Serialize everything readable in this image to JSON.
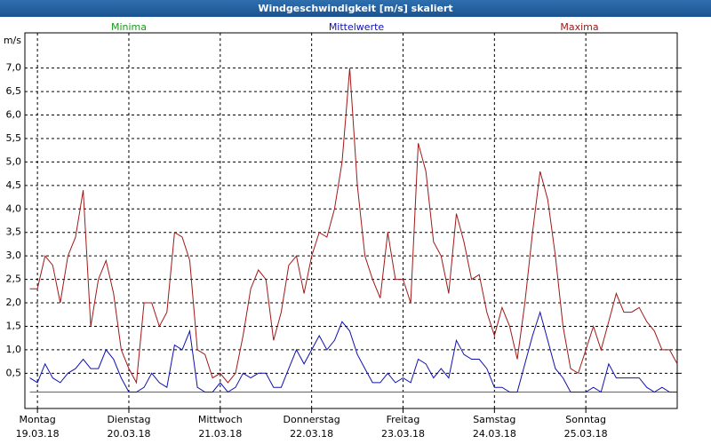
{
  "chart_data": {
    "type": "line",
    "title": "Windgeschwindigkeit [m/s] skaliert",
    "y_unit": "m/s",
    "x": [
      -2,
      0,
      2,
      4,
      6,
      8,
      10,
      12,
      14,
      16,
      18,
      20,
      22,
      24,
      26,
      28,
      30,
      32,
      34,
      36,
      38,
      40,
      42,
      44,
      46,
      48,
      50,
      52,
      54,
      56,
      58,
      60,
      62,
      64,
      66,
      68,
      70,
      72,
      74,
      76,
      78,
      80,
      82,
      84,
      86,
      88,
      90,
      92,
      94,
      96,
      98,
      100,
      102,
      104,
      106,
      108,
      110,
      112,
      114,
      116,
      118,
      120,
      122,
      124,
      126,
      128,
      130,
      132,
      134,
      136,
      138,
      140,
      142,
      144,
      146,
      148,
      150,
      152,
      154,
      156,
      158,
      160,
      162,
      164,
      166,
      168
    ],
    "xlim": [
      -3.3,
      168
    ],
    "xticks": [
      {
        "value": 0,
        "label": "19.03.18"
      },
      {
        "value": 24,
        "label": "20.03.18"
      },
      {
        "value": 48,
        "label": "21.03.18"
      },
      {
        "value": 72,
        "label": "22.03.18"
      },
      {
        "value": 96,
        "label": "23.03.18"
      },
      {
        "value": 120,
        "label": "24.03.18"
      },
      {
        "value": 144,
        "label": "25.03.18"
      }
    ],
    "xtick_weekdays": [
      "Montag",
      "Dienstag",
      "Mittwoch",
      "Donnerstag",
      "Freitag",
      "Samstag",
      "Sonntag"
    ],
    "ylim": [
      -0.25,
      7.75
    ],
    "yticks": [
      {
        "value": 0.5,
        "label": "0,5"
      },
      {
        "value": 1,
        "label": "1,0"
      },
      {
        "value": 1.5,
        "label": "1,5"
      },
      {
        "value": 2,
        "label": "2,0"
      },
      {
        "value": 2.5,
        "label": "2,5"
      },
      {
        "value": 3,
        "label": "3,0"
      },
      {
        "value": 3.5,
        "label": "3,5"
      },
      {
        "value": 4,
        "label": "4,0"
      },
      {
        "value": 4.5,
        "label": "4,5"
      },
      {
        "value": 5,
        "label": "5,0"
      },
      {
        "value": 5.5,
        "label": "5,5"
      },
      {
        "value": 6,
        "label": "6,0"
      },
      {
        "value": 6.5,
        "label": "6,5"
      },
      {
        "value": 7,
        "label": "7,0"
      }
    ],
    "grid": true,
    "series": [
      {
        "name": "Minima",
        "color": "#1a9a1a",
        "values": [
          0.1,
          0.1,
          0.1,
          0.1,
          0.1,
          0.1,
          0.1,
          0.1,
          0.1,
          0.1,
          0.1,
          0.1,
          0.1,
          0.1,
          0.1,
          0.1,
          0.1,
          0.1,
          0.1,
          0.1,
          0.1,
          0.1,
          0.1,
          0.1,
          0.1,
          0.1,
          0.1,
          0.1,
          0.1,
          0.1,
          0.1,
          0.1,
          0.1,
          0.1,
          0.1,
          0.1,
          0.1,
          0.1,
          0.1,
          0.1,
          0.1,
          0.1,
          0.1,
          0.1,
          0.1,
          0.1,
          0.1,
          0.1,
          0.1,
          0.1,
          0.1,
          0.1,
          0.1,
          0.1,
          0.1,
          0.1,
          0.1,
          0.1,
          0.1,
          0.1,
          0.1,
          0.1,
          0.1,
          0.1,
          0.1,
          0.1,
          0.1,
          0.1,
          0.1,
          0.1,
          0.1,
          0.1,
          0.1,
          0.1,
          0.1,
          0.1,
          0.1,
          0.1,
          0.1,
          0.1,
          0.1,
          0.1,
          0.1,
          0.1,
          0.1,
          0.1
        ]
      },
      {
        "name": "Mittelwerte",
        "color": "#1010b0",
        "values": [
          0.4,
          0.3,
          0.7,
          0.4,
          0.3,
          0.5,
          0.6,
          0.8,
          0.6,
          0.6,
          1.0,
          0.8,
          0.4,
          0.1,
          0.1,
          0.2,
          0.5,
          0.3,
          0.2,
          1.1,
          1.0,
          1.4,
          0.2,
          0.1,
          0.1,
          0.3,
          0.1,
          0.2,
          0.5,
          0.4,
          0.5,
          0.5,
          0.2,
          0.2,
          0.6,
          1.0,
          0.7,
          1.0,
          1.3,
          1.0,
          1.2,
          1.6,
          1.4,
          0.9,
          0.6,
          0.3,
          0.3,
          0.5,
          0.3,
          0.4,
          0.3,
          0.8,
          0.7,
          0.4,
          0.6,
          0.4,
          1.2,
          0.9,
          0.8,
          0.8,
          0.6,
          0.2,
          0.2,
          0.1,
          0.1,
          0.7,
          1.3,
          1.8,
          1.2,
          0.6,
          0.4,
          0.1,
          0.1,
          0.1,
          0.2,
          0.1,
          0.7,
          0.4,
          0.4,
          0.4,
          0.4,
          0.2,
          0.1,
          0.2,
          0.1,
          0.1
        ]
      },
      {
        "name": "Maxima",
        "color": "#a01818",
        "values": [
          2.3,
          2.3,
          3.0,
          2.8,
          2.0,
          3.0,
          3.4,
          4.4,
          1.5,
          2.5,
          2.9,
          2.2,
          1.0,
          0.6,
          0.3,
          2.0,
          2.0,
          1.5,
          1.8,
          3.5,
          3.4,
          2.9,
          1.0,
          0.9,
          0.4,
          0.5,
          0.3,
          0.5,
          1.3,
          2.3,
          2.7,
          2.5,
          1.2,
          1.8,
          2.8,
          3.0,
          2.2,
          3.0,
          3.5,
          3.4,
          4.0,
          5.0,
          7.0,
          4.5,
          3.0,
          2.5,
          2.1,
          3.5,
          2.5,
          2.5,
          2.0,
          5.4,
          4.8,
          3.3,
          3.0,
          2.2,
          3.9,
          3.3,
          2.5,
          2.6,
          1.8,
          1.3,
          1.9,
          1.5,
          0.8,
          2.0,
          3.5,
          4.8,
          4.2,
          3.0,
          1.5,
          0.6,
          0.5,
          1.0,
          1.5,
          1.0,
          1.6,
          2.2,
          1.8,
          1.8,
          1.9,
          1.6,
          1.4,
          1.0,
          1.0,
          0.7
        ]
      }
    ]
  }
}
